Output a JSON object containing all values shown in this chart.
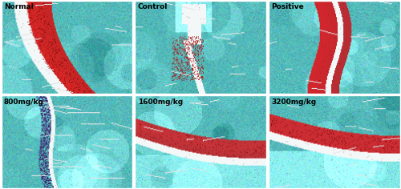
{
  "panels": [
    {
      "label": "Normal",
      "row": 0,
      "col": 0,
      "feature": "normal"
    },
    {
      "label": "Control",
      "row": 0,
      "col": 1,
      "feature": "control"
    },
    {
      "label": "Positive",
      "row": 0,
      "col": 2,
      "feature": "positive"
    },
    {
      "label": "800mg/kg",
      "row": 1,
      "col": 0,
      "feature": "800"
    },
    {
      "label": "1600mg/kg",
      "row": 1,
      "col": 1,
      "feature": "1600"
    },
    {
      "label": "3200mg/kg",
      "row": 1,
      "col": 2,
      "feature": "3200"
    }
  ],
  "nrows": 2,
  "ncols": 3,
  "figsize": [
    5.0,
    2.36
  ],
  "dpi": 100,
  "label_color": "#000000",
  "label_fontsize": 6.5,
  "border_color": "#ffffff",
  "border_lw": 1.0,
  "gap_color": "#ffffff"
}
